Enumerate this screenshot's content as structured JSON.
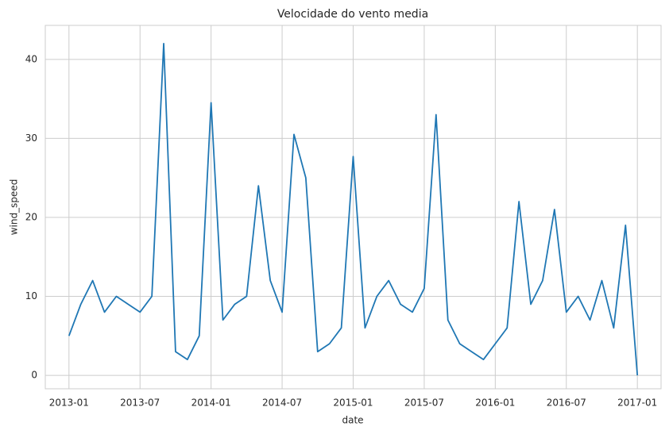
{
  "chart_data": {
    "type": "line",
    "title": "Velocidade do vento media",
    "xlabel": "date",
    "ylabel": "wind_speed",
    "x": [
      "2013-01",
      "2013-02",
      "2013-03",
      "2013-04",
      "2013-05",
      "2013-06",
      "2013-07",
      "2013-08",
      "2013-09",
      "2013-10",
      "2013-11",
      "2013-12",
      "2014-01",
      "2014-02",
      "2014-03",
      "2014-04",
      "2014-05",
      "2014-06",
      "2014-07",
      "2014-08",
      "2014-09",
      "2014-10",
      "2014-11",
      "2014-12",
      "2015-01",
      "2015-02",
      "2015-03",
      "2015-04",
      "2015-05",
      "2015-06",
      "2015-07",
      "2015-08",
      "2015-09",
      "2015-10",
      "2015-11",
      "2015-12",
      "2016-01",
      "2016-02",
      "2016-03",
      "2016-04",
      "2016-05",
      "2016-06",
      "2016-07",
      "2016-08",
      "2016-09",
      "2016-10",
      "2016-11",
      "2016-12",
      "2017-01"
    ],
    "series": [
      {
        "name": "wind_speed",
        "color": "#1f77b4",
        "values": [
          5,
          9,
          12,
          8,
          10,
          9,
          8,
          10,
          42,
          3,
          2,
          5,
          34.5,
          7,
          9,
          10,
          24,
          12,
          8,
          30.5,
          25,
          3,
          4,
          6,
          27.7,
          6,
          10,
          12,
          9,
          8,
          11,
          33,
          7,
          4,
          3,
          2,
          4,
          6,
          22,
          9,
          12,
          21,
          8,
          10,
          7,
          12,
          6,
          19,
          0
        ]
      }
    ],
    "xlim": [
      "2012-11",
      "2017-03"
    ],
    "xticks": [
      "2013-01",
      "2013-07",
      "2014-01",
      "2014-07",
      "2015-01",
      "2015-07",
      "2016-01",
      "2016-07",
      "2017-01"
    ],
    "ylim": [
      -1.7,
      44.3
    ],
    "yticks": [
      0,
      10,
      20,
      30,
      40
    ],
    "grid": true
  }
}
